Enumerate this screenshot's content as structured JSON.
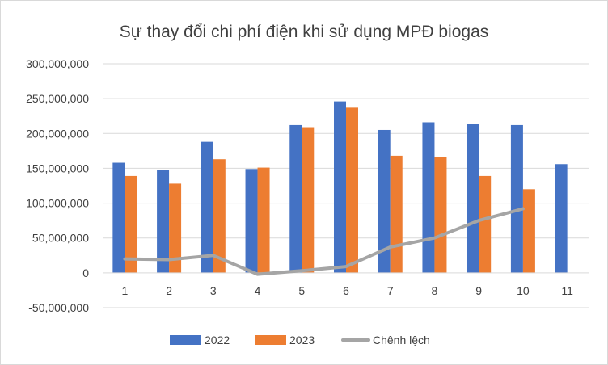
{
  "chart_data": {
    "type": "bar",
    "title": "Sự thay đổi chi phí điện khi sử dụng MPĐ biogas",
    "xlabel": "",
    "ylabel": "",
    "categories": [
      "1",
      "2",
      "3",
      "4",
      "5",
      "6",
      "7",
      "8",
      "9",
      "10",
      "11"
    ],
    "ylim": [
      -50000000,
      300000000
    ],
    "yticks": [
      -50000000,
      0,
      50000000,
      100000000,
      150000000,
      200000000,
      250000000,
      300000000
    ],
    "ytick_labels": [
      "-50,000,000",
      "0",
      "50,000,000",
      "100,000,000",
      "150,000,000",
      "200,000,000",
      "250,000,000",
      "300,000,000"
    ],
    "grid": true,
    "legend_position": "bottom",
    "series": [
      {
        "name": "2022",
        "kind": "bar",
        "color": "#4472C4",
        "values": [
          158000000,
          148000000,
          188000000,
          149000000,
          212000000,
          246000000,
          205000000,
          216000000,
          214000000,
          212000000,
          156000000
        ]
      },
      {
        "name": "2023",
        "kind": "bar",
        "color": "#ED7D31",
        "values": [
          139000000,
          128000000,
          163000000,
          151000000,
          209000000,
          237000000,
          168000000,
          166000000,
          139000000,
          120000000,
          null
        ]
      },
      {
        "name": "Chênh lệch",
        "kind": "line",
        "color": "#A5A5A5",
        "values": [
          20000000,
          19000000,
          25000000,
          -2000000,
          3000000,
          9000000,
          37000000,
          50000000,
          75000000,
          92000000,
          null
        ]
      }
    ]
  }
}
